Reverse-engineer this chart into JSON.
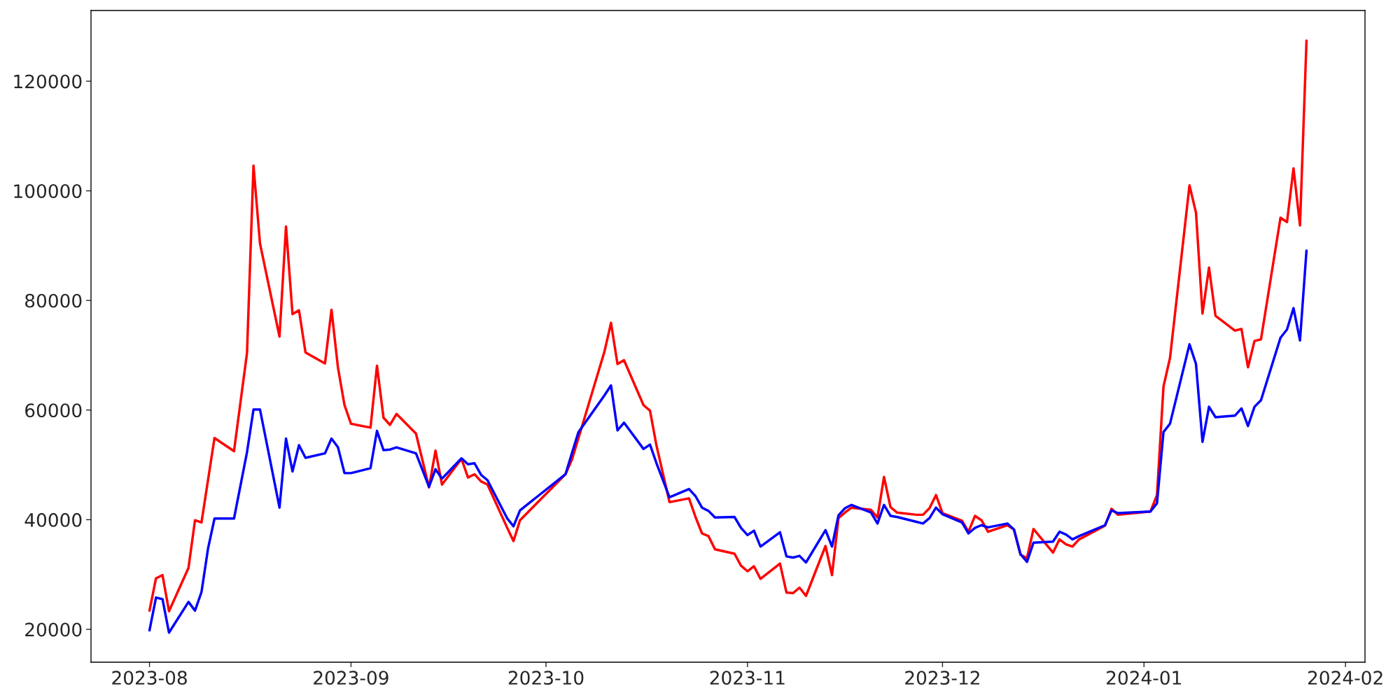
{
  "chart_data": {
    "type": "line",
    "x": [
      "2023-08-01",
      "2023-08-02",
      "2023-08-03",
      "2023-08-04",
      "2023-08-07",
      "2023-08-08",
      "2023-08-09",
      "2023-08-10",
      "2023-08-11",
      "2023-08-14",
      "2023-08-16",
      "2023-08-17",
      "2023-08-18",
      "2023-08-21",
      "2023-08-22",
      "2023-08-23",
      "2023-08-24",
      "2023-08-25",
      "2023-08-28",
      "2023-08-29",
      "2023-08-30",
      "2023-08-31",
      "2023-09-01",
      "2023-09-04",
      "2023-09-05",
      "2023-09-06",
      "2023-09-07",
      "2023-09-08",
      "2023-09-11",
      "2023-09-13",
      "2023-09-14",
      "2023-09-15",
      "2023-09-18",
      "2023-09-19",
      "2023-09-20",
      "2023-09-21",
      "2023-09-22",
      "2023-09-25",
      "2023-09-26",
      "2023-09-27",
      "2023-10-04",
      "2023-10-05",
      "2023-10-06",
      "2023-10-10",
      "2023-10-11",
      "2023-10-12",
      "2023-10-13",
      "2023-10-16",
      "2023-10-17",
      "2023-10-18",
      "2023-10-20",
      "2023-10-23",
      "2023-10-24",
      "2023-10-25",
      "2023-10-26",
      "2023-10-27",
      "2023-10-30",
      "2023-10-31",
      "2023-11-01",
      "2023-11-02",
      "2023-11-03",
      "2023-11-06",
      "2023-11-07",
      "2023-11-08",
      "2023-11-09",
      "2023-11-10",
      "2023-11-13",
      "2023-11-14",
      "2023-11-15",
      "2023-11-16",
      "2023-11-17",
      "2023-11-20",
      "2023-11-21",
      "2023-11-22",
      "2023-11-23",
      "2023-11-24",
      "2023-11-27",
      "2023-11-28",
      "2023-11-29",
      "2023-11-30",
      "2023-12-01",
      "2023-12-04",
      "2023-12-05",
      "2023-12-06",
      "2023-12-07",
      "2023-12-08",
      "2023-12-11",
      "2023-12-12",
      "2023-12-13",
      "2023-12-14",
      "2023-12-15",
      "2023-12-18",
      "2023-12-19",
      "2023-12-20",
      "2023-12-21",
      "2023-12-22",
      "2023-12-26",
      "2023-12-27",
      "2023-12-28",
      "2024-01-02",
      "2024-01-03",
      "2024-01-04",
      "2024-01-05",
      "2024-01-08",
      "2024-01-09",
      "2024-01-10",
      "2024-01-11",
      "2024-01-12",
      "2024-01-15",
      "2024-01-16",
      "2024-01-17",
      "2024-01-18",
      "2024-01-19",
      "2024-01-22",
      "2024-01-23",
      "2024-01-24",
      "2024-01-25",
      "2024-01-26"
    ],
    "series": [
      {
        "color": "#ff0000",
        "values": [
          23400,
          29300,
          29900,
          23300,
          31200,
          39900,
          39500,
          47200,
          54900,
          52500,
          70400,
          104600,
          90400,
          73400,
          93500,
          77500,
          78200,
          70500,
          68500,
          78300,
          67700,
          60900,
          57500,
          56800,
          68100,
          58600,
          57300,
          59300,
          55700,
          45900,
          52600,
          46400,
          51100,
          47700,
          48300,
          47000,
          46400,
          38600,
          36100,
          39900,
          48300,
          51000,
          54900,
          70700,
          75900,
          68400,
          69100,
          60900,
          59900,
          53500,
          43200,
          43900,
          40500,
          37500,
          37000,
          34600,
          33800,
          31600,
          30600,
          31500,
          29200,
          32000,
          26700,
          26600,
          27600,
          26100,
          35200,
          29900,
          40300,
          41300,
          42200,
          41800,
          40400,
          47800,
          42300,
          41300,
          40900,
          40900,
          42100,
          44500,
          41200,
          39800,
          37800,
          40700,
          39900,
          37800,
          39000,
          38200,
          33600,
          33000,
          38300,
          34000,
          36400,
          35500,
          35100,
          36400,
          38900,
          42000,
          40900,
          41500,
          44500,
          64300,
          69500,
          101000,
          96000,
          77600,
          86000,
          77200,
          74500,
          74800,
          67800,
          72600,
          72900,
          95100,
          94300,
          104100,
          93700,
          127400
        ]
      },
      {
        "color": "#0000ff",
        "values": [
          19800,
          25800,
          25500,
          19400,
          25000,
          23400,
          26800,
          34700,
          40200,
          40200,
          52300,
          60100,
          60100,
          42200,
          54800,
          48800,
          53600,
          51300,
          52100,
          54800,
          53200,
          48500,
          48500,
          49400,
          56200,
          52700,
          52800,
          53200,
          52100,
          46000,
          49200,
          47500,
          51200,
          50100,
          50300,
          48200,
          47200,
          40300,
          38800,
          41700,
          48300,
          52200,
          56000,
          62700,
          64500,
          56300,
          57700,
          52900,
          53700,
          50300,
          44100,
          45600,
          44300,
          42200,
          41600,
          40400,
          40500,
          38500,
          37200,
          38000,
          35100,
          37700,
          33300,
          33100,
          33400,
          32200,
          38100,
          35100,
          40800,
          42100,
          42700,
          41300,
          39300,
          42700,
          40700,
          40500,
          39600,
          39300,
          40300,
          42200,
          41000,
          39500,
          37500,
          38500,
          39000,
          38600,
          39300,
          38200,
          33700,
          32300,
          35800,
          36000,
          37800,
          37300,
          36400,
          37000,
          39000,
          41700,
          41200,
          41500,
          43000,
          56000,
          57500,
          72000,
          68400,
          54200,
          60600,
          58700,
          59000,
          60300,
          57100,
          60600,
          61800,
          73200,
          74700,
          78600,
          72700,
          89100
        ]
      }
    ],
    "xlim": [
      "2023-07-23",
      "2024-02-04"
    ],
    "xticks": [
      {
        "value": "2023-08-01",
        "label": "2023-08"
      },
      {
        "value": "2023-09-01",
        "label": "2023-09"
      },
      {
        "value": "2023-10-01",
        "label": "2023-10"
      },
      {
        "value": "2023-11-01",
        "label": "2023-11"
      },
      {
        "value": "2023-12-01",
        "label": "2023-12"
      },
      {
        "value": "2024-01-01",
        "label": "2024-01"
      },
      {
        "value": "2024-02-01",
        "label": "2024-02"
      }
    ],
    "ylim": [
      14000,
      132900
    ],
    "yticks": [
      20000,
      40000,
      60000,
      80000,
      100000,
      120000
    ],
    "grid": false
  }
}
